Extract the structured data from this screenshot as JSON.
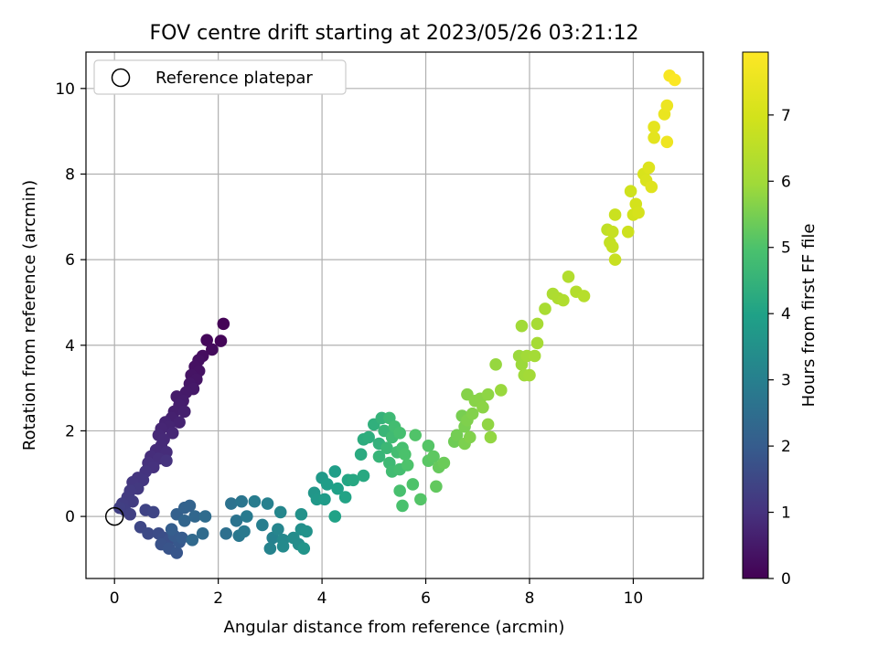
{
  "chart_data": {
    "type": "scatter",
    "title": "FOV centre drift starting at 2023/05/26 03:21:12",
    "xlabel": "Angular distance from reference (arcmin)",
    "ylabel": "Rotation from reference (arcmin)",
    "xlim": [
      -0.55,
      11.35
    ],
    "ylim": [
      -1.45,
      10.85
    ],
    "xticks": [
      0,
      2,
      4,
      6,
      8,
      10
    ],
    "yticks": [
      0,
      2,
      4,
      6,
      8,
      10
    ],
    "grid": true,
    "legend": {
      "position": "top-left",
      "entries": [
        "Reference platepar"
      ]
    },
    "reference_point": {
      "x": 0,
      "y": 0
    },
    "colorbar": {
      "label": "Hours from first FF file",
      "colormap": "viridis",
      "min": 0,
      "max": 7.95,
      "ticks": [
        0,
        1,
        2,
        3,
        4,
        5,
        6,
        7
      ]
    },
    "series": [
      {
        "points": [
          {
            "x": 2.1,
            "y": 4.5,
            "c": 0.05
          },
          {
            "x": 2.05,
            "y": 4.1,
            "c": 0.1
          },
          {
            "x": 1.78,
            "y": 4.12,
            "c": 0.15
          },
          {
            "x": 1.88,
            "y": 3.9,
            "c": 0.2
          },
          {
            "x": 1.7,
            "y": 3.75,
            "c": 0.25
          },
          {
            "x": 1.62,
            "y": 3.65,
            "c": 0.3
          },
          {
            "x": 1.55,
            "y": 3.5,
            "c": 0.32
          },
          {
            "x": 1.63,
            "y": 3.4,
            "c": 0.35
          },
          {
            "x": 1.48,
            "y": 3.3,
            "c": 0.38
          },
          {
            "x": 1.58,
            "y": 3.2,
            "c": 0.4
          },
          {
            "x": 1.45,
            "y": 3.1,
            "c": 0.45
          },
          {
            "x": 1.52,
            "y": 2.98,
            "c": 0.48
          },
          {
            "x": 1.38,
            "y": 2.9,
            "c": 0.5
          },
          {
            "x": 1.2,
            "y": 2.8,
            "c": 0.52
          },
          {
            "x": 1.32,
            "y": 2.7,
            "c": 0.55
          },
          {
            "x": 1.25,
            "y": 2.6,
            "c": 0.58
          },
          {
            "x": 1.15,
            "y": 2.45,
            "c": 0.6
          },
          {
            "x": 1.35,
            "y": 2.45,
            "c": 0.62
          },
          {
            "x": 1.1,
            "y": 2.3,
            "c": 0.65
          },
          {
            "x": 1.25,
            "y": 2.2,
            "c": 0.68
          },
          {
            "x": 0.98,
            "y": 2.2,
            "c": 0.7
          },
          {
            "x": 1.05,
            "y": 2.1,
            "c": 0.72
          },
          {
            "x": 0.9,
            "y": 2.05,
            "c": 0.75
          },
          {
            "x": 1.12,
            "y": 1.95,
            "c": 0.78
          },
          {
            "x": 0.85,
            "y": 1.9,
            "c": 0.8
          },
          {
            "x": 0.95,
            "y": 1.8,
            "c": 0.82
          },
          {
            "x": 0.9,
            "y": 1.65,
            "c": 0.85
          },
          {
            "x": 0.8,
            "y": 1.55,
            "c": 0.88
          },
          {
            "x": 1.0,
            "y": 1.5,
            "c": 0.9
          },
          {
            "x": 0.7,
            "y": 1.4,
            "c": 0.92
          },
          {
            "x": 0.85,
            "y": 1.35,
            "c": 0.95
          },
          {
            "x": 0.65,
            "y": 1.25,
            "c": 0.98
          },
          {
            "x": 0.75,
            "y": 1.15,
            "c": 1.0
          },
          {
            "x": 1.0,
            "y": 1.3,
            "c": 1.02
          },
          {
            "x": 0.6,
            "y": 1.05,
            "c": 1.05
          },
          {
            "x": 0.45,
            "y": 0.9,
            "c": 1.08
          },
          {
            "x": 0.55,
            "y": 0.85,
            "c": 1.1
          },
          {
            "x": 0.35,
            "y": 0.8,
            "c": 1.12
          },
          {
            "x": 0.45,
            "y": 0.65,
            "c": 1.15
          },
          {
            "x": 0.3,
            "y": 0.6,
            "c": 1.18
          },
          {
            "x": 0.25,
            "y": 0.45,
            "c": 1.2
          },
          {
            "x": 0.35,
            "y": 0.35,
            "c": 1.22
          },
          {
            "x": 0.15,
            "y": 0.3,
            "c": 1.25
          },
          {
            "x": 0.2,
            "y": 0.15,
            "c": 1.28
          },
          {
            "x": 0.1,
            "y": 0.2,
            "c": 1.3
          },
          {
            "x": 0.3,
            "y": 0.05,
            "c": 1.32
          },
          {
            "x": 0.6,
            "y": 0.15,
            "c": 1.4
          },
          {
            "x": 0.75,
            "y": 0.1,
            "c": 1.45
          },
          {
            "x": 0.5,
            "y": -0.25,
            "c": 1.5
          },
          {
            "x": 0.65,
            "y": -0.4,
            "c": 1.55
          },
          {
            "x": 0.85,
            "y": -0.4,
            "c": 1.6
          },
          {
            "x": 0.95,
            "y": -0.5,
            "c": 1.65
          },
          {
            "x": 1.05,
            "y": -0.55,
            "c": 1.7
          },
          {
            "x": 0.9,
            "y": -0.65,
            "c": 1.75
          },
          {
            "x": 1.05,
            "y": -0.75,
            "c": 1.8
          },
          {
            "x": 1.2,
            "y": -0.85,
            "c": 1.85
          },
          {
            "x": 1.25,
            "y": -0.6,
            "c": 1.9
          },
          {
            "x": 1.15,
            "y": -0.45,
            "c": 1.95
          },
          {
            "x": 1.3,
            "y": -0.5,
            "c": 2.0
          },
          {
            "x": 1.1,
            "y": -0.3,
            "c": 2.05
          },
          {
            "x": 1.2,
            "y": 0.05,
            "c": 2.1
          },
          {
            "x": 1.35,
            "y": 0.2,
            "c": 2.15
          },
          {
            "x": 1.45,
            "y": 0.25,
            "c": 2.2
          },
          {
            "x": 1.35,
            "y": -0.1,
            "c": 2.25
          },
          {
            "x": 1.55,
            "y": 0.0,
            "c": 2.3
          },
          {
            "x": 1.5,
            "y": -0.55,
            "c": 2.35
          },
          {
            "x": 1.7,
            "y": -0.4,
            "c": 2.4
          },
          {
            "x": 1.75,
            "y": 0.0,
            "c": 2.45
          },
          {
            "x": 2.15,
            "y": -0.4,
            "c": 2.55
          },
          {
            "x": 2.25,
            "y": 0.3,
            "c": 2.6
          },
          {
            "x": 2.35,
            "y": -0.1,
            "c": 2.65
          },
          {
            "x": 2.45,
            "y": 0.35,
            "c": 2.7
          },
          {
            "x": 2.4,
            "y": -0.45,
            "c": 2.75
          },
          {
            "x": 2.5,
            "y": -0.35,
            "c": 2.8
          },
          {
            "x": 2.55,
            "y": 0.0,
            "c": 2.85
          },
          {
            "x": 2.7,
            "y": 0.35,
            "c": 2.9
          },
          {
            "x": 2.85,
            "y": -0.2,
            "c": 2.95
          },
          {
            "x": 2.95,
            "y": 0.3,
            "c": 3.0
          },
          {
            "x": 3.05,
            "y": -0.5,
            "c": 3.05
          },
          {
            "x": 3.0,
            "y": -0.75,
            "c": 3.1
          },
          {
            "x": 3.15,
            "y": -0.3,
            "c": 3.15
          },
          {
            "x": 3.2,
            "y": 0.1,
            "c": 3.2
          },
          {
            "x": 3.25,
            "y": -0.55,
            "c": 3.25
          },
          {
            "x": 3.25,
            "y": -0.7,
            "c": 3.3
          },
          {
            "x": 3.45,
            "y": -0.5,
            "c": 3.35
          },
          {
            "x": 3.55,
            "y": -0.65,
            "c": 3.4
          },
          {
            "x": 3.6,
            "y": -0.3,
            "c": 3.45
          },
          {
            "x": 3.6,
            "y": 0.05,
            "c": 3.5
          },
          {
            "x": 3.7,
            "y": -0.35,
            "c": 3.55
          },
          {
            "x": 3.65,
            "y": -0.75,
            "c": 3.6
          },
          {
            "x": 3.85,
            "y": 0.55,
            "c": 3.65
          },
          {
            "x": 3.9,
            "y": 0.4,
            "c": 3.7
          },
          {
            "x": 4.0,
            "y": 0.9,
            "c": 3.75
          },
          {
            "x": 4.05,
            "y": 0.4,
            "c": 3.8
          },
          {
            "x": 4.1,
            "y": 0.75,
            "c": 3.85
          },
          {
            "x": 4.25,
            "y": 1.05,
            "c": 3.9
          },
          {
            "x": 4.3,
            "y": 0.65,
            "c": 3.95
          },
          {
            "x": 4.25,
            "y": 0.0,
            "c": 4.0
          },
          {
            "x": 4.45,
            "y": 0.45,
            "c": 4.05
          },
          {
            "x": 4.5,
            "y": 0.85,
            "c": 4.1
          },
          {
            "x": 4.6,
            "y": 0.85,
            "c": 4.15
          },
          {
            "x": 4.8,
            "y": 0.95,
            "c": 4.2
          },
          {
            "x": 4.75,
            "y": 1.45,
            "c": 4.25
          },
          {
            "x": 4.8,
            "y": 1.8,
            "c": 4.3
          },
          {
            "x": 4.9,
            "y": 1.85,
            "c": 4.35
          },
          {
            "x": 5.0,
            "y": 2.15,
            "c": 4.4
          },
          {
            "x": 5.1,
            "y": 1.7,
            "c": 4.45
          },
          {
            "x": 5.15,
            "y": 2.3,
            "c": 4.5
          },
          {
            "x": 5.1,
            "y": 1.4,
            "c": 4.55
          },
          {
            "x": 5.2,
            "y": 2.0,
            "c": 4.6
          },
          {
            "x": 5.25,
            "y": 1.6,
            "c": 4.65
          },
          {
            "x": 5.3,
            "y": 2.3,
            "c": 4.7
          },
          {
            "x": 5.3,
            "y": 1.25,
            "c": 4.72
          },
          {
            "x": 5.35,
            "y": 1.85,
            "c": 4.75
          },
          {
            "x": 5.35,
            "y": 1.05,
            "c": 4.78
          },
          {
            "x": 5.4,
            "y": 2.1,
            "c": 4.8
          },
          {
            "x": 5.45,
            "y": 1.5,
            "c": 4.82
          },
          {
            "x": 5.5,
            "y": 1.1,
            "c": 4.85
          },
          {
            "x": 5.5,
            "y": 1.95,
            "c": 4.88
          },
          {
            "x": 5.55,
            "y": 1.6,
            "c": 4.9
          },
          {
            "x": 5.5,
            "y": 0.6,
            "c": 4.92
          },
          {
            "x": 5.55,
            "y": 0.25,
            "c": 4.95
          },
          {
            "x": 5.6,
            "y": 1.45,
            "c": 4.98
          },
          {
            "x": 5.65,
            "y": 1.2,
            "c": 5.0
          },
          {
            "x": 5.75,
            "y": 0.75,
            "c": 5.02
          },
          {
            "x": 5.8,
            "y": 1.9,
            "c": 5.05
          },
          {
            "x": 5.9,
            "y": 0.4,
            "c": 5.08
          },
          {
            "x": 6.05,
            "y": 1.65,
            "c": 5.1
          },
          {
            "x": 6.05,
            "y": 1.3,
            "c": 5.15
          },
          {
            "x": 6.15,
            "y": 1.4,
            "c": 5.2
          },
          {
            "x": 6.2,
            "y": 0.7,
            "c": 5.25
          },
          {
            "x": 6.25,
            "y": 1.15,
            "c": 5.3
          },
          {
            "x": 6.35,
            "y": 1.25,
            "c": 5.35
          },
          {
            "x": 6.55,
            "y": 1.75,
            "c": 5.4
          },
          {
            "x": 6.6,
            "y": 1.9,
            "c": 5.45
          },
          {
            "x": 6.7,
            "y": 2.35,
            "c": 5.5
          },
          {
            "x": 6.75,
            "y": 2.1,
            "c": 5.52
          },
          {
            "x": 6.75,
            "y": 1.7,
            "c": 5.55
          },
          {
            "x": 6.8,
            "y": 2.25,
            "c": 5.58
          },
          {
            "x": 6.85,
            "y": 1.85,
            "c": 5.6
          },
          {
            "x": 6.9,
            "y": 2.4,
            "c": 5.62
          },
          {
            "x": 6.8,
            "y": 2.85,
            "c": 5.65
          },
          {
            "x": 6.95,
            "y": 2.7,
            "c": 5.68
          },
          {
            "x": 7.05,
            "y": 2.75,
            "c": 5.7
          },
          {
            "x": 7.1,
            "y": 2.55,
            "c": 5.72
          },
          {
            "x": 7.2,
            "y": 2.85,
            "c": 5.75
          },
          {
            "x": 7.2,
            "y": 2.15,
            "c": 5.78
          },
          {
            "x": 7.25,
            "y": 1.85,
            "c": 5.8
          },
          {
            "x": 7.35,
            "y": 3.55,
            "c": 5.85
          },
          {
            "x": 7.45,
            "y": 2.95,
            "c": 5.88
          },
          {
            "x": 7.8,
            "y": 3.75,
            "c": 5.9
          },
          {
            "x": 7.85,
            "y": 3.55,
            "c": 5.92
          },
          {
            "x": 7.9,
            "y": 3.3,
            "c": 5.95
          },
          {
            "x": 7.85,
            "y": 4.45,
            "c": 5.98
          },
          {
            "x": 7.95,
            "y": 3.75,
            "c": 6.0
          },
          {
            "x": 8.0,
            "y": 3.3,
            "c": 6.02
          },
          {
            "x": 8.1,
            "y": 3.75,
            "c": 6.05
          },
          {
            "x": 8.15,
            "y": 4.05,
            "c": 6.08
          },
          {
            "x": 8.15,
            "y": 4.5,
            "c": 6.1
          },
          {
            "x": 8.3,
            "y": 4.85,
            "c": 6.15
          },
          {
            "x": 8.45,
            "y": 5.2,
            "c": 6.2
          },
          {
            "x": 8.55,
            "y": 5.1,
            "c": 6.25
          },
          {
            "x": 8.65,
            "y": 5.05,
            "c": 6.28
          },
          {
            "x": 8.75,
            "y": 5.6,
            "c": 6.32
          },
          {
            "x": 8.9,
            "y": 5.25,
            "c": 6.35
          },
          {
            "x": 9.05,
            "y": 5.15,
            "c": 6.4
          },
          {
            "x": 9.5,
            "y": 6.7,
            "c": 6.6
          },
          {
            "x": 9.55,
            "y": 6.4,
            "c": 6.65
          },
          {
            "x": 9.6,
            "y": 6.3,
            "c": 6.7
          },
          {
            "x": 9.6,
            "y": 6.65,
            "c": 6.72
          },
          {
            "x": 9.65,
            "y": 6.0,
            "c": 6.75
          },
          {
            "x": 9.65,
            "y": 7.05,
            "c": 6.8
          },
          {
            "x": 9.9,
            "y": 6.65,
            "c": 6.85
          },
          {
            "x": 9.95,
            "y": 7.6,
            "c": 6.9
          },
          {
            "x": 10.0,
            "y": 7.05,
            "c": 6.95
          },
          {
            "x": 10.05,
            "y": 7.3,
            "c": 7.0
          },
          {
            "x": 10.1,
            "y": 7.1,
            "c": 7.05
          },
          {
            "x": 10.2,
            "y": 8.0,
            "c": 7.1
          },
          {
            "x": 10.25,
            "y": 7.85,
            "c": 7.15
          },
          {
            "x": 10.3,
            "y": 8.15,
            "c": 7.2
          },
          {
            "x": 10.35,
            "y": 7.7,
            "c": 7.25
          },
          {
            "x": 10.4,
            "y": 8.85,
            "c": 7.35
          },
          {
            "x": 10.4,
            "y": 9.1,
            "c": 7.4
          },
          {
            "x": 10.6,
            "y": 9.4,
            "c": 7.5
          },
          {
            "x": 10.65,
            "y": 9.6,
            "c": 7.55
          },
          {
            "x": 10.65,
            "y": 8.75,
            "c": 7.6
          },
          {
            "x": 10.7,
            "y": 10.3,
            "c": 7.8
          },
          {
            "x": 10.8,
            "y": 10.2,
            "c": 7.9
          }
        ]
      }
    ]
  }
}
